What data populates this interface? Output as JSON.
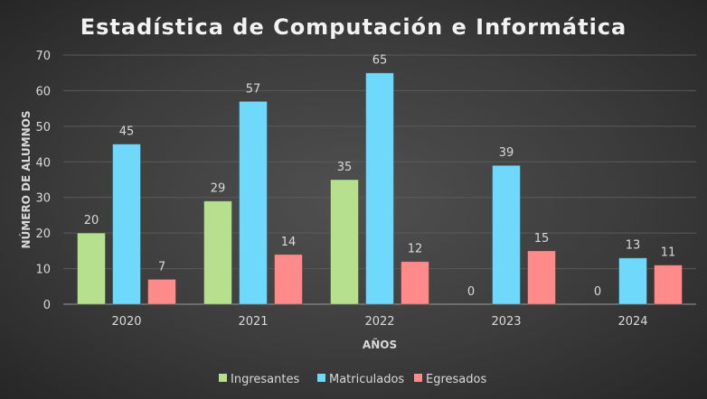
{
  "chart_data": {
    "type": "bar",
    "title": "Estadística de Computación e Informática",
    "xlabel": "AÑOS",
    "ylabel": "NÚMERO DE ALUMNOS",
    "categories": [
      "2020",
      "2021",
      "2022",
      "2023",
      "2024"
    ],
    "series": [
      {
        "name": "Ingresantes",
        "values": [
          20,
          29,
          35,
          0,
          0
        ],
        "color": "#b6e08e"
      },
      {
        "name": "Matriculados",
        "values": [
          45,
          57,
          65,
          39,
          13
        ],
        "color": "#6fd9fc"
      },
      {
        "name": "Egresados",
        "values": [
          7,
          14,
          12,
          15,
          11
        ],
        "color": "#ff8a8a"
      }
    ],
    "ylim": [
      0,
      70
    ],
    "yticks": [
      0,
      10,
      20,
      30,
      40,
      50,
      60,
      70
    ],
    "grid": true,
    "data_labels": true,
    "legend_position": "bottom"
  }
}
